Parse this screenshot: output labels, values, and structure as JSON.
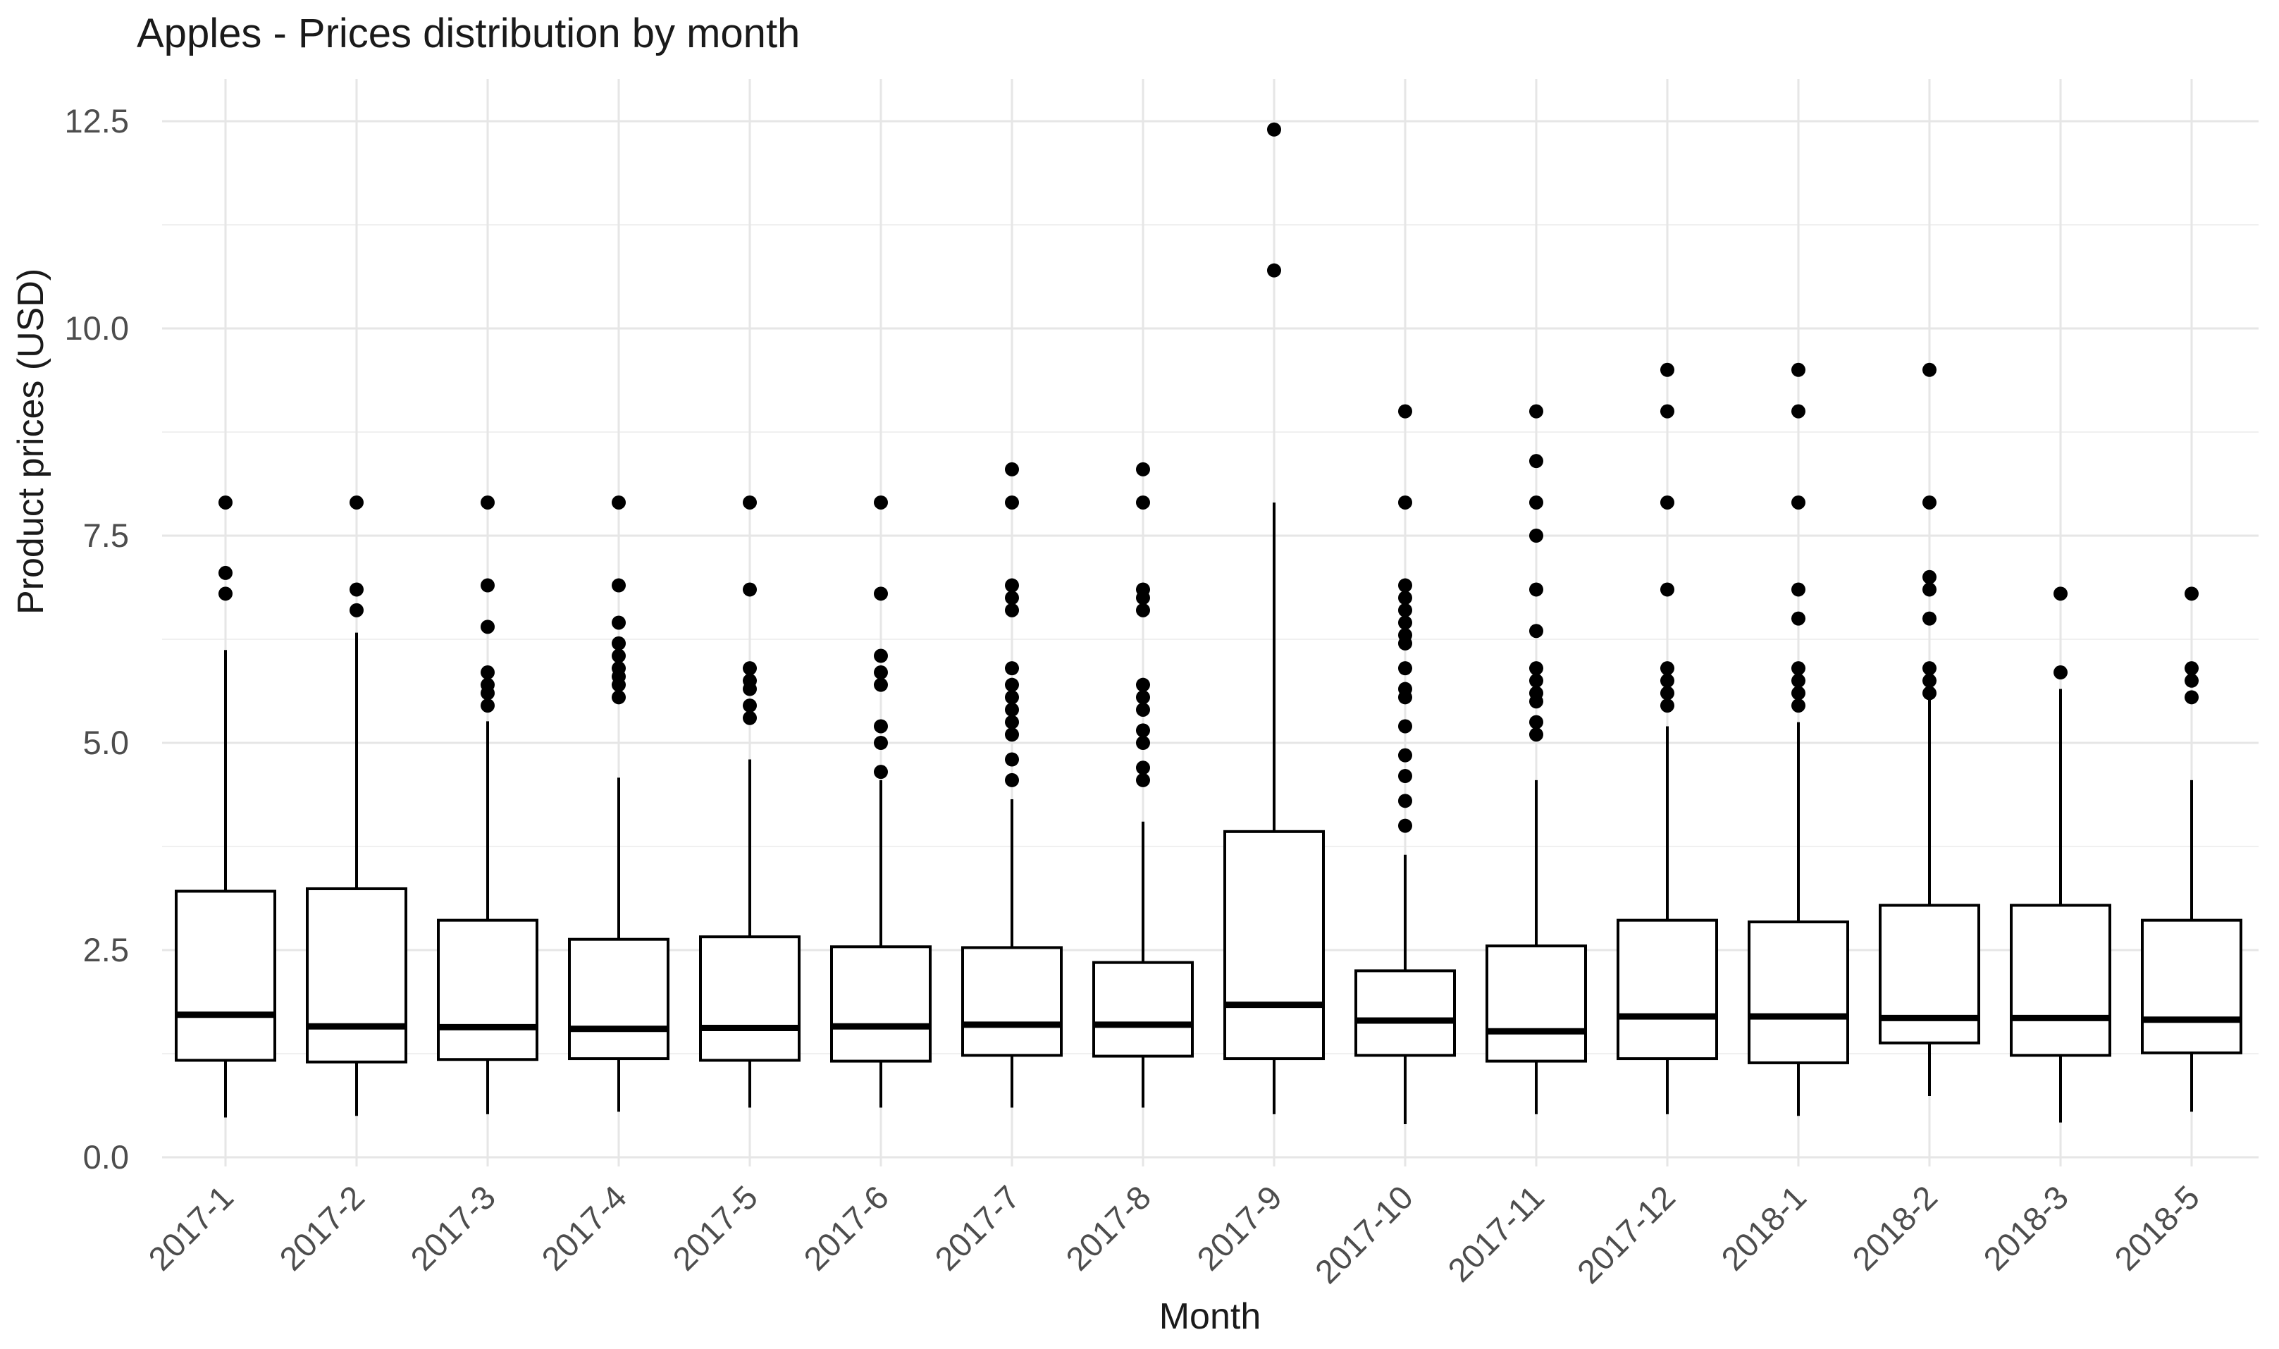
{
  "chart_data": {
    "type": "boxplot",
    "title": "Apples - Prices distribution by month",
    "xlabel": "Month",
    "ylabel": "Product prices (USD)",
    "ylim": [
      0,
      12.5
    ],
    "grid": "on",
    "legend": "none",
    "yticks": {
      "values": [
        0,
        2.5,
        5.0,
        7.5,
        10.0,
        12.5
      ],
      "labels": [
        "0.0",
        "2.5",
        "5.0",
        "7.5",
        "10.0",
        "12.5"
      ]
    },
    "minor_gridlines": [
      1.25,
      3.75,
      6.25,
      8.75,
      11.25
    ],
    "categories": [
      "2017-1",
      "2017-2",
      "2017-3",
      "2017-4",
      "2017-5",
      "2017-6",
      "2017-7",
      "2017-8",
      "2017-9",
      "2017-10",
      "2017-11",
      "2017-12",
      "2018-1",
      "2018-2",
      "2018-3",
      "2018-5"
    ],
    "boxes": [
      {
        "month": "2017-1",
        "whisker_low": 0.48,
        "q1": 1.17,
        "median": 1.72,
        "q3": 3.21,
        "whisker_high": 6.12,
        "outliers": [
          7.9,
          7.05,
          6.8
        ]
      },
      {
        "month": "2017-2",
        "whisker_low": 0.5,
        "q1": 1.15,
        "median": 1.58,
        "q3": 3.24,
        "whisker_high": 6.33,
        "outliers": [
          7.9,
          6.85,
          6.6
        ]
      },
      {
        "month": "2017-3",
        "whisker_low": 0.52,
        "q1": 1.18,
        "median": 1.57,
        "q3": 2.86,
        "whisker_high": 5.26,
        "outliers": [
          7.9,
          6.9,
          6.4,
          5.85,
          5.7,
          5.6,
          5.45
        ]
      },
      {
        "month": "2017-4",
        "whisker_low": 0.55,
        "q1": 1.19,
        "median": 1.55,
        "q3": 2.63,
        "whisker_high": 4.58,
        "outliers": [
          7.9,
          6.9,
          6.45,
          6.2,
          6.05,
          5.9,
          5.8,
          5.7,
          5.55
        ]
      },
      {
        "month": "2017-5",
        "whisker_low": 0.6,
        "q1": 1.17,
        "median": 1.56,
        "q3": 2.66,
        "whisker_high": 4.8,
        "outliers": [
          7.9,
          6.85,
          5.9,
          5.75,
          5.65,
          5.45,
          5.3
        ]
      },
      {
        "month": "2017-6",
        "whisker_low": 0.6,
        "q1": 1.16,
        "median": 1.58,
        "q3": 2.54,
        "whisker_high": 4.55,
        "outliers": [
          7.9,
          6.8,
          6.05,
          5.85,
          5.7,
          5.2,
          5.0,
          4.65
        ]
      },
      {
        "month": "2017-7",
        "whisker_low": 0.6,
        "q1": 1.23,
        "median": 1.6,
        "q3": 2.53,
        "whisker_high": 4.32,
        "outliers": [
          8.3,
          7.9,
          6.9,
          6.75,
          6.6,
          5.9,
          5.7,
          5.55,
          5.4,
          5.25,
          5.1,
          4.8,
          4.55
        ]
      },
      {
        "month": "2017-8",
        "whisker_low": 0.6,
        "q1": 1.22,
        "median": 1.6,
        "q3": 2.35,
        "whisker_high": 4.05,
        "outliers": [
          8.3,
          7.9,
          6.85,
          6.75,
          6.6,
          5.7,
          5.55,
          5.4,
          5.15,
          5.0,
          4.7,
          4.55
        ]
      },
      {
        "month": "2017-9",
        "whisker_low": 0.52,
        "q1": 1.19,
        "median": 1.84,
        "q3": 3.93,
        "whisker_high": 7.9,
        "outliers": [
          12.4,
          10.7
        ]
      },
      {
        "month": "2017-10",
        "whisker_low": 0.4,
        "q1": 1.23,
        "median": 1.65,
        "q3": 2.25,
        "whisker_high": 3.65,
        "outliers": [
          9.0,
          7.9,
          6.9,
          6.75,
          6.6,
          6.45,
          6.3,
          6.2,
          5.9,
          5.65,
          5.55,
          5.2,
          4.85,
          4.6,
          4.3,
          4.0
        ]
      },
      {
        "month": "2017-11",
        "whisker_low": 0.52,
        "q1": 1.16,
        "median": 1.52,
        "q3": 2.55,
        "whisker_high": 4.55,
        "outliers": [
          9.0,
          8.4,
          7.9,
          7.5,
          6.85,
          6.35,
          5.9,
          5.75,
          5.6,
          5.5,
          5.25,
          5.1
        ]
      },
      {
        "month": "2017-12",
        "whisker_low": 0.52,
        "q1": 1.19,
        "median": 1.7,
        "q3": 2.86,
        "whisker_high": 5.2,
        "outliers": [
          9.5,
          9.0,
          7.9,
          6.85,
          5.9,
          5.75,
          5.6,
          5.45
        ]
      },
      {
        "month": "2018-1",
        "whisker_low": 0.5,
        "q1": 1.14,
        "median": 1.7,
        "q3": 2.84,
        "whisker_high": 5.25,
        "outliers": [
          9.5,
          9.0,
          7.9,
          6.85,
          6.5,
          5.9,
          5.75,
          5.6,
          5.45
        ]
      },
      {
        "month": "2018-2",
        "whisker_low": 0.74,
        "q1": 1.38,
        "median": 1.68,
        "q3": 3.04,
        "whisker_high": 5.55,
        "outliers": [
          9.5,
          7.9,
          7.0,
          6.85,
          6.5,
          5.9,
          5.75,
          5.6
        ]
      },
      {
        "month": "2018-3",
        "whisker_low": 0.42,
        "q1": 1.23,
        "median": 1.68,
        "q3": 3.04,
        "whisker_high": 5.65,
        "outliers": [
          6.8,
          5.85
        ]
      },
      {
        "month": "2018-5",
        "whisker_low": 0.55,
        "q1": 1.26,
        "median": 1.66,
        "q3": 2.86,
        "whisker_high": 4.55,
        "outliers": [
          6.8,
          5.9,
          5.75,
          5.55
        ]
      }
    ],
    "colors": {
      "box_fill": "#ffffff",
      "box_stroke": "#000000",
      "median": "#000000",
      "whisker": "#000000",
      "outlier": "#000000",
      "grid_major": "#e6e6e6",
      "grid_minor": "#f0f0f0",
      "tick_label": "#4d4d4d",
      "title": "#1a1a1a"
    }
  }
}
